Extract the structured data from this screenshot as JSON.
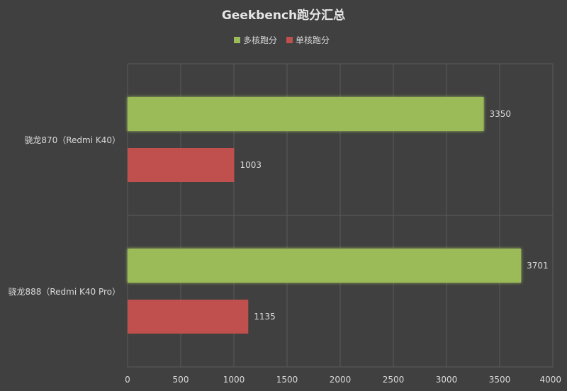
{
  "chart_data": {
    "type": "bar",
    "orientation": "horizontal",
    "title": "Geekbench跑分汇总",
    "categories": [
      "骁龙870（Redmi K40）",
      "骁龙888（Redmi K40 Pro）"
    ],
    "series": [
      {
        "name": "多核跑分",
        "values": [
          3350,
          3701
        ],
        "color": "#9bbb59"
      },
      {
        "name": "单核跑分",
        "values": [
          1003,
          1135
        ],
        "color": "#c0504d"
      }
    ],
    "xlim": [
      0,
      4000
    ],
    "xticks": [
      0,
      500,
      1000,
      1500,
      2000,
      2500,
      3000,
      3500,
      4000
    ],
    "grid": true,
    "legend_position": "top",
    "data_labels": true,
    "background_color": "#404040",
    "text_color": "#d9d9d9",
    "grid_color": "#5a5a5a"
  }
}
